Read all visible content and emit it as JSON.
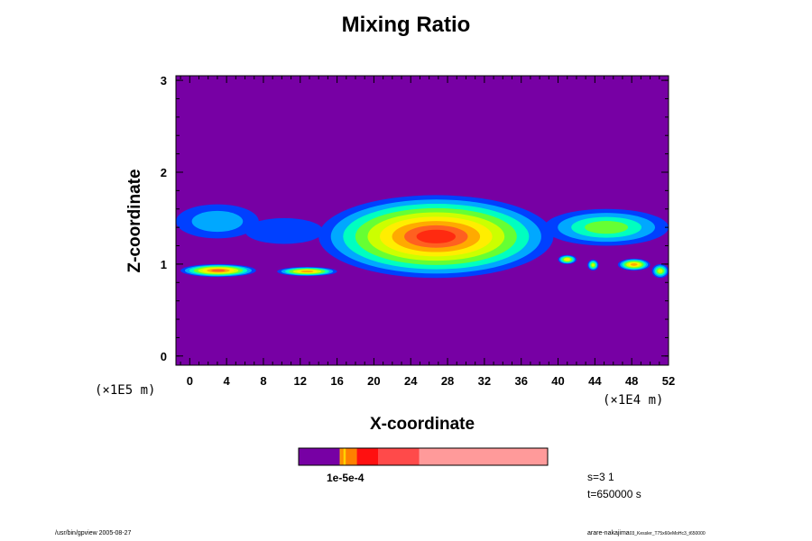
{
  "chart_data": {
    "type": "heatmap",
    "title": "Mixing Ratio",
    "xlabel": "X-coordinate",
    "ylabel": "Z-coordinate",
    "x_scale_label": "(×1E4 m)",
    "y_scale_label": "(×1E5 m)",
    "xlim": [
      -1.5,
      52
    ],
    "ylim": [
      -0.1,
      3.05
    ],
    "x_ticks": [
      "0",
      "4",
      "8",
      "12",
      "16",
      "20",
      "24",
      "28",
      "32",
      "36",
      "40",
      "44",
      "48",
      "52"
    ],
    "y_ticks": [
      "0",
      "1",
      "2",
      "3"
    ],
    "background_color": "#7700a4",
    "color_scale": [
      {
        "color": "#0040ff",
        "level": 1
      },
      {
        "color": "#00a8ff",
        "level": 2
      },
      {
        "color": "#00ffc0",
        "level": 3
      },
      {
        "color": "#66ff33",
        "level": 4
      },
      {
        "color": "#ccff00",
        "level": 5
      },
      {
        "color": "#ffee00",
        "level": 6
      },
      {
        "color": "#ffaa00",
        "level": 7
      },
      {
        "color": "#ff6020",
        "level": 8
      },
      {
        "color": "#ff2a10",
        "level": 9
      }
    ],
    "regions": [
      {
        "name": "upper-left-layer",
        "x": [
          -1.5,
          7.5
        ],
        "z": [
          1.28,
          1.65
        ],
        "max_level": 2
      },
      {
        "name": "upper-filament",
        "x": [
          6,
          14.5
        ],
        "z": [
          1.22,
          1.5
        ],
        "max_level": 1
      },
      {
        "name": "main-cloud",
        "x": [
          14,
          39.5
        ],
        "z": [
          0.85,
          1.75
        ],
        "max_level": 9
      },
      {
        "name": "right-upper-layer",
        "x": [
          38.5,
          52
        ],
        "z": [
          1.2,
          1.6
        ],
        "max_level": 4
      },
      {
        "name": "right-small-blob-1",
        "x": [
          40,
          42
        ],
        "z": [
          1.0,
          1.1
        ],
        "max_level": 6
      },
      {
        "name": "right-small-blob-2",
        "x": [
          43.2,
          44.4
        ],
        "z": [
          0.93,
          1.05
        ],
        "max_level": 5
      },
      {
        "name": "right-small-blob-3",
        "x": [
          46.5,
          50
        ],
        "z": [
          0.93,
          1.06
        ],
        "max_level": 7
      },
      {
        "name": "right-small-blob-4",
        "x": [
          50.2,
          52
        ],
        "z": [
          0.85,
          1.0
        ],
        "max_level": 5
      },
      {
        "name": "lower-left-band",
        "x": [
          -1,
          7.2
        ],
        "z": [
          0.86,
          1.0
        ],
        "max_level": 8
      },
      {
        "name": "lower-mid-band",
        "x": [
          9.5,
          16
        ],
        "z": [
          0.87,
          0.97
        ],
        "max_level": 7
      }
    ],
    "colorbar": {
      "segments": [
        {
          "color": "#7700a4",
          "fraction": 0.165
        },
        {
          "color": "#ffa000",
          "fraction": 0.006
        },
        {
          "color": "#ff8c00",
          "fraction": 0.009
        },
        {
          "color": "#ffd200",
          "fraction": 0.009
        },
        {
          "color": "#ff8000",
          "fraction": 0.045
        },
        {
          "color": "#ff1010",
          "fraction": 0.085
        },
        {
          "color": "#ff4a4a",
          "fraction": 0.165
        },
        {
          "color": "#ff9a9a",
          "fraction": 0.516
        }
      ],
      "label": "1e-5e-4"
    }
  },
  "info": {
    "slice": "s=3 1",
    "time": "t=650000 s"
  },
  "footer": {
    "left": "/usr/bin/gpview 2005-08-27",
    "right": "arare-nakajima",
    "right_small": "03_Kessler_T75x60eMoHc3_t650000"
  }
}
